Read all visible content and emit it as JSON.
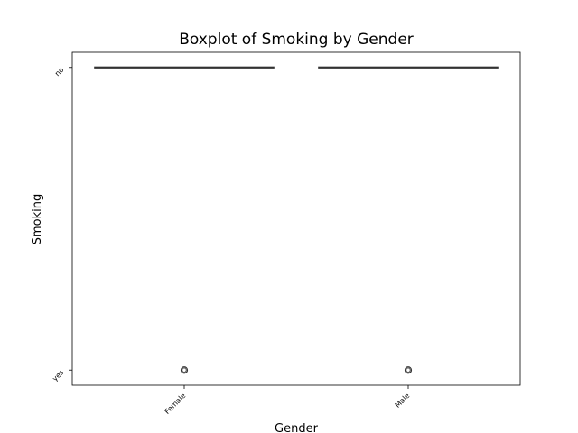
{
  "chart_data": {
    "type": "box",
    "title": "Boxplot of Smoking by Gender",
    "xlabel": "Gender",
    "ylabel": "Smoking",
    "categories": [
      "Female",
      "Male"
    ],
    "y_categories": [
      "no",
      "yes"
    ],
    "ylim": [
      -0.05,
      1.05
    ],
    "grid": false,
    "boxes": [
      {
        "category": "Female",
        "whisker_low": 0,
        "q1": 0,
        "median": 0,
        "q3": 0,
        "whisker_high": 0,
        "outliers": [
          1
        ]
      },
      {
        "category": "Male",
        "whisker_low": 0,
        "q1": 0,
        "median": 0,
        "q3": 0,
        "whisker_high": 0,
        "outliers": [
          1
        ]
      }
    ],
    "box_color": "#333333",
    "outlier_color": "#333333"
  }
}
